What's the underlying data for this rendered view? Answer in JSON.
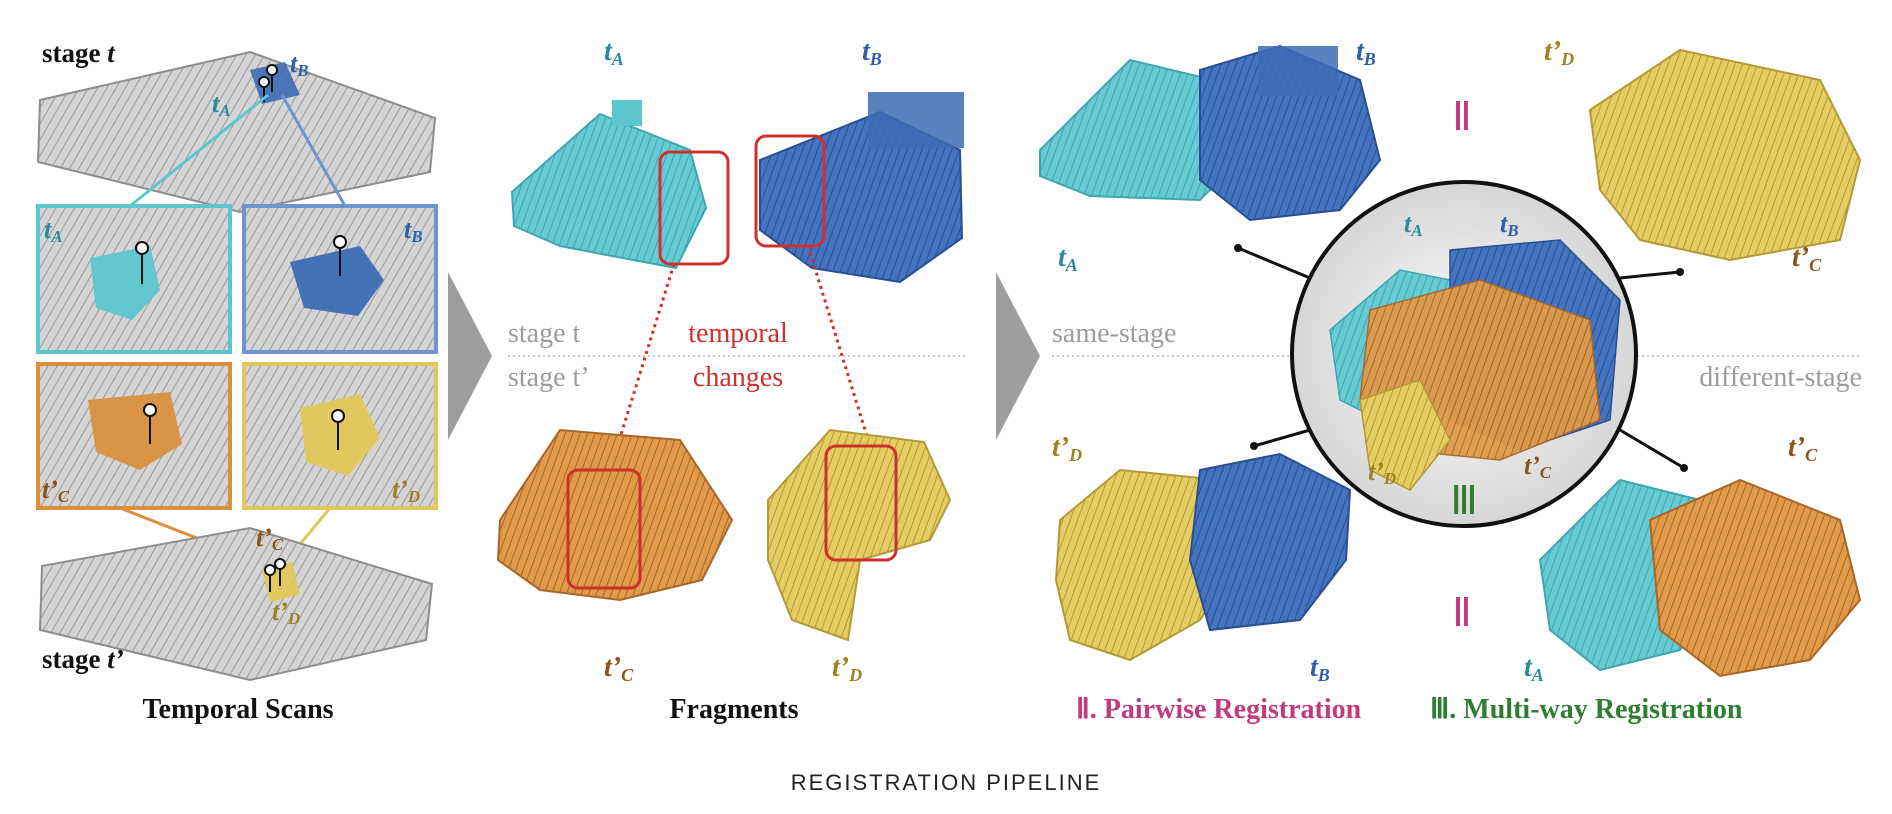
{
  "panels": {
    "scans": {
      "title": "Temporal Scans",
      "stage_top": "stage ",
      "stage_top_var": "t",
      "stage_bottom": "stage ",
      "stage_bottom_var": "t’",
      "labels": [
        "tA",
        "tB",
        "t’C",
        "t’D"
      ]
    },
    "fragments": {
      "title": "Fragments",
      "stage_t": "stage t",
      "stage_tp": "stage t’",
      "changes_line1": "temporal",
      "changes_line2": "changes",
      "labels": [
        "tA",
        "tB",
        "t’C",
        "t’D"
      ]
    },
    "registration": {
      "same_stage": "same-stage",
      "different_stage": "different-stage",
      "numeral_pair": "Ⅱ",
      "numeral_multi": "Ⅲ",
      "pairwise_label": "Ⅱ. Pairwise Registration",
      "multiway_label": "Ⅲ. Multi-way Registration",
      "labels": [
        "tA",
        "tB",
        "t’C",
        "t’D"
      ]
    }
  },
  "caption": "REGISTRATION PIPELINE",
  "colors": {
    "cyan": "#5cc6cf",
    "blue": "#3d6bb5",
    "orange": "#d9903e",
    "yellow": "#e2c85a",
    "gray": "#c9c9c9",
    "red": "#d0302c",
    "magenta": "#c23b7e",
    "green": "#2e7d32"
  }
}
